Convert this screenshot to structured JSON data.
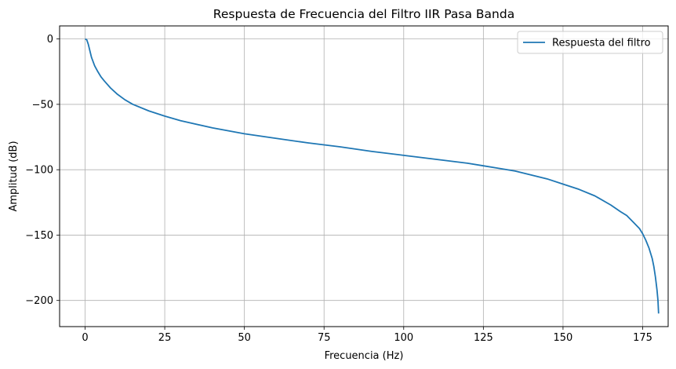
{
  "chart_data": {
    "type": "line",
    "title": "Respuesta de Frecuencia del Filtro IIR Pasa Banda",
    "xlabel": "Frecuencia (Hz)",
    "ylabel": "Amplitud (dB)",
    "xlim": [
      -8,
      183
    ],
    "ylim": [
      -220,
      10
    ],
    "xticks": [
      0,
      25,
      50,
      75,
      100,
      125,
      150,
      175
    ],
    "yticks": [
      0,
      -50,
      -100,
      -150,
      -200
    ],
    "grid": true,
    "legend_position": "upper right",
    "line_color": "#1f77b4",
    "series": [
      {
        "name": "Respuesta del filtro",
        "x": [
          0,
          0.5,
          1,
          1.5,
          2,
          3,
          4,
          5,
          6,
          8,
          10,
          12.5,
          15,
          20,
          25,
          30,
          40,
          50,
          60,
          70,
          75,
          80,
          90,
          100,
          110,
          120,
          125,
          130,
          135,
          140,
          145,
          150,
          155,
          160,
          165,
          168,
          170,
          172,
          174,
          175,
          176,
          177,
          178,
          178.5,
          179,
          179.5,
          179.8,
          180
        ],
        "y": [
          0,
          -0.5,
          -4,
          -9,
          -14,
          -20.5,
          -25,
          -29,
          -32,
          -37.5,
          -42,
          -46.5,
          -50,
          -55,
          -59,
          -62.5,
          -68,
          -72.5,
          -76,
          -79.5,
          -81,
          -82.5,
          -86,
          -89,
          -92,
          -95,
          -97,
          -99,
          -101,
          -104,
          -107,
          -111,
          -115,
          -120,
          -127,
          -132,
          -135,
          -140,
          -145,
          -149,
          -154,
          -160,
          -168,
          -174,
          -182,
          -192,
          -200,
          -210
        ]
      }
    ]
  }
}
